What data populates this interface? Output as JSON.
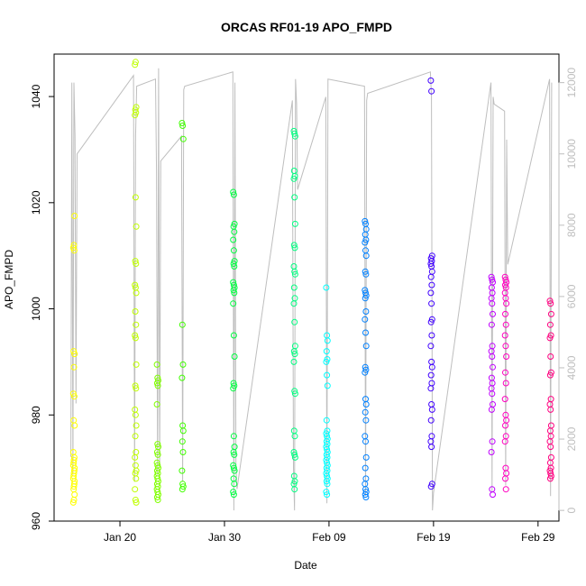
{
  "chart_data": {
    "type": "scatter",
    "title": "ORCAS RF01-19 APO_FMPD",
    "xlabel": "Date",
    "ylabel": "APO_FMPD",
    "x_ticks": [
      "Jan 20",
      "Jan 30",
      "Feb 09",
      "Feb 19",
      "Feb 29"
    ],
    "x_tick_days": [
      20,
      30,
      40,
      50,
      60
    ],
    "xlim": [
      13.7,
      62.0
    ],
    "ylim": [
      960,
      1048
    ],
    "y_ticks": [
      960,
      980,
      1000,
      1020,
      1040
    ],
    "y2_ticks": [
      0,
      2000,
      4000,
      6000,
      8000,
      10000,
      12000
    ],
    "y2lim": [
      -300,
      12800
    ],
    "colors": {
      "axis": "#000000",
      "secondary_axis": "#bebebe",
      "altitude_line": "#bebebe"
    },
    "altitude_series": [
      [
        15.3,
        1500
      ],
      [
        15.4,
        12000
      ],
      [
        15.5,
        1000
      ],
      [
        15.6,
        12000
      ],
      [
        15.7,
        10500
      ],
      [
        15.8,
        3000
      ],
      [
        15.9,
        10000
      ],
      [
        21.3,
        12200
      ],
      [
        21.4,
        800
      ],
      [
        21.5,
        10500
      ],
      [
        21.6,
        11900
      ],
      [
        23.4,
        12100
      ],
      [
        23.5,
        9500
      ],
      [
        23.6,
        1000
      ],
      [
        23.7,
        12400
      ],
      [
        23.8,
        1200
      ],
      [
        23.9,
        9800
      ],
      [
        25.9,
        10500
      ],
      [
        26.0,
        800
      ],
      [
        26.1,
        11800
      ],
      [
        26.2,
        11900
      ],
      [
        30.8,
        12300
      ],
      [
        30.9,
        0
      ],
      [
        31.0,
        12000
      ],
      [
        31.1,
        1200
      ],
      [
        31.2,
        600
      ],
      [
        36.5,
        11500
      ],
      [
        36.6,
        1200
      ],
      [
        36.7,
        0
      ],
      [
        36.8,
        12100
      ],
      [
        36.9,
        11400
      ],
      [
        37.0,
        9000
      ],
      [
        39.7,
        11600
      ],
      [
        39.8,
        200
      ],
      [
        39.9,
        12100
      ],
      [
        43.4,
        11900
      ],
      [
        43.5,
        400
      ],
      [
        43.6,
        11500
      ],
      [
        43.7,
        11700
      ],
      [
        49.7,
        12300
      ],
      [
        49.8,
        11600
      ],
      [
        49.9,
        0
      ],
      [
        50.0,
        500
      ],
      [
        55.5,
        12000
      ],
      [
        55.6,
        500
      ],
      [
        55.7,
        11600
      ],
      [
        55.8,
        11400
      ],
      [
        56.8,
        11200
      ],
      [
        56.9,
        700
      ],
      [
        57.0,
        10400
      ],
      [
        57.1,
        6900
      ],
      [
        61.1,
        12100
      ],
      [
        61.2,
        400
      ],
      [
        61.3,
        12000
      ]
    ],
    "flights": [
      {
        "day": 15.6,
        "color": "#ffff00",
        "values": [
          963.5,
          964.0,
          965.0,
          966.0,
          967.0,
          968.0,
          969.0,
          970.0,
          971.0,
          972.0,
          973.0,
          966.5,
          967.5,
          968.5,
          969.5,
          970.5,
          971.5,
          978.0,
          979.0,
          983.5,
          984.0,
          989.0,
          991.5,
          992.0,
          1011.0,
          1011.5,
          1012.0,
          1017.5
        ]
      },
      {
        "day": 21.5,
        "color": "#c0ff00",
        "values": [
          1046.0,
          1046.5,
          1038.0,
          1037.5,
          1037.0,
          1036.5,
          1021.0,
          1015.5,
          1009.0,
          1008.5,
          1004.5,
          1004.0,
          1003.0,
          999.5,
          997.0,
          995.0,
          994.5,
          989.5,
          985.5,
          985.0,
          981.0,
          980.0,
          978.0,
          976.0,
          973.0,
          972.0,
          970.5,
          969.5,
          969.0,
          968.0,
          966.0,
          964.0,
          963.5
        ]
      },
      {
        "day": 23.6,
        "color": "#80ff00",
        "values": [
          989.5,
          987.0,
          986.5,
          986.0,
          985.5,
          982.0,
          974.5,
          974.0,
          973.0,
          972.5,
          971.0,
          970.5,
          970.0,
          969.5,
          969.0,
          968.5,
          968.0,
          967.5,
          967.0,
          966.5,
          966.0,
          965.5,
          965.0,
          964.5,
          964.0
        ]
      },
      {
        "day": 26.0,
        "color": "#40ff00",
        "values": [
          1035.0,
          1034.5,
          1032.0,
          997.0,
          989.5,
          987.0,
          978.0,
          977.0,
          975.0,
          973.0,
          969.5,
          967.0,
          966.5,
          966.0
        ]
      },
      {
        "day": 30.9,
        "color": "#00ff40",
        "values": [
          1022.0,
          1021.5,
          1016.0,
          1015.5,
          1014.5,
          1013.0,
          1011.0,
          1009.0,
          1008.5,
          1008.0,
          1005.0,
          1004.5,
          1004.0,
          1003.5,
          1003.0,
          1001.0,
          995.0,
          991.0,
          986.0,
          985.5,
          985.0,
          976.0,
          974.0,
          973.0,
          972.5,
          970.5,
          970.0,
          969.5,
          968.0,
          967.0,
          965.5,
          965.0
        ]
      },
      {
        "day": 36.7,
        "color": "#00ff80",
        "values": [
          1033.5,
          1033.0,
          1032.5,
          1026.0,
          1025.0,
          1024.5,
          1021.0,
          1016.0,
          1012.0,
          1011.5,
          1008.0,
          1007.0,
          1006.5,
          1004.0,
          1002.0,
          1001.0,
          997.5,
          993.0,
          992.0,
          991.5,
          990.0,
          984.5,
          984.0,
          977.0,
          976.0,
          973.0,
          972.5,
          972.0,
          968.5,
          967.5,
          967.0,
          966.0
        ]
      },
      {
        "day": 39.8,
        "color": "#00ffff",
        "values": [
          1004.0,
          995.0,
          994.0,
          992.0,
          990.5,
          990.0,
          987.5,
          985.5,
          979.0,
          977.0,
          976.5,
          976.0,
          975.5,
          975.0,
          974.5,
          974.0,
          973.5,
          973.0,
          972.5,
          972.0,
          971.5,
          971.0,
          970.5,
          970.0,
          969.5,
          969.0,
          968.5,
          968.0,
          967.5,
          967.0,
          965.5,
          965.0
        ]
      },
      {
        "day": 43.5,
        "color": "#0080ff",
        "values": [
          1016.5,
          1016.0,
          1015.0,
          1014.0,
          1013.0,
          1012.5,
          1011.0,
          1010.0,
          1007.0,
          1006.5,
          1003.5,
          1003.0,
          1002.5,
          1002.0,
          999.5,
          998.0,
          995.5,
          993.0,
          989.0,
          988.5,
          988.0,
          983.0,
          982.0,
          980.5,
          979.0,
          976.0,
          975.0,
          972.0,
          970.0,
          968.0,
          967.0,
          966.0,
          965.5,
          965.0,
          964.5
        ]
      },
      {
        "day": 49.8,
        "color": "#4000ff",
        "values": [
          1043.0,
          1041.0,
          1010.0,
          1009.5,
          1009.0,
          1008.5,
          1008.0,
          1007.0,
          1006.0,
          1004.5,
          1003.0,
          1001.0,
          998.0,
          997.5,
          995.0,
          993.0,
          990.0,
          989.0,
          987.5,
          986.0,
          985.0,
          982.0,
          981.0,
          979.0,
          976.0,
          975.0,
          974.0,
          967.0,
          966.5
        ]
      },
      {
        "day": 55.6,
        "color": "#c000ff",
        "values": [
          1006.0,
          1005.5,
          1005.0,
          1004.0,
          1003.0,
          1002.0,
          1001.0,
          999.0,
          997.0,
          993.0,
          992.0,
          991.0,
          989.0,
          987.0,
          986.0,
          985.0,
          984.0,
          982.0,
          981.0,
          975.0,
          973.0,
          966.0,
          965.0
        ]
      },
      {
        "day": 56.9,
        "color": "#ff00c0",
        "values": [
          1006.0,
          1005.5,
          1005.0,
          1004.5,
          1004.0,
          1003.0,
          1002.0,
          1001.0,
          999.0,
          997.0,
          995.0,
          993.0,
          991.0,
          988.0,
          986.0,
          983.0,
          980.0,
          979.0,
          978.0,
          976.0,
          975.0,
          970.0,
          969.0,
          968.0,
          966.0
        ]
      },
      {
        "day": 61.2,
        "color": "#ff0080",
        "values": [
          1001.5,
          1001.0,
          999.0,
          997.0,
          995.0,
          994.5,
          991.0,
          988.0,
          987.5,
          983.0,
          982.0,
          981.0,
          978.0,
          977.0,
          976.0,
          975.0,
          974.0,
          972.0,
          971.0,
          970.0,
          969.5,
          969.0,
          968.5,
          968.0
        ]
      }
    ]
  }
}
